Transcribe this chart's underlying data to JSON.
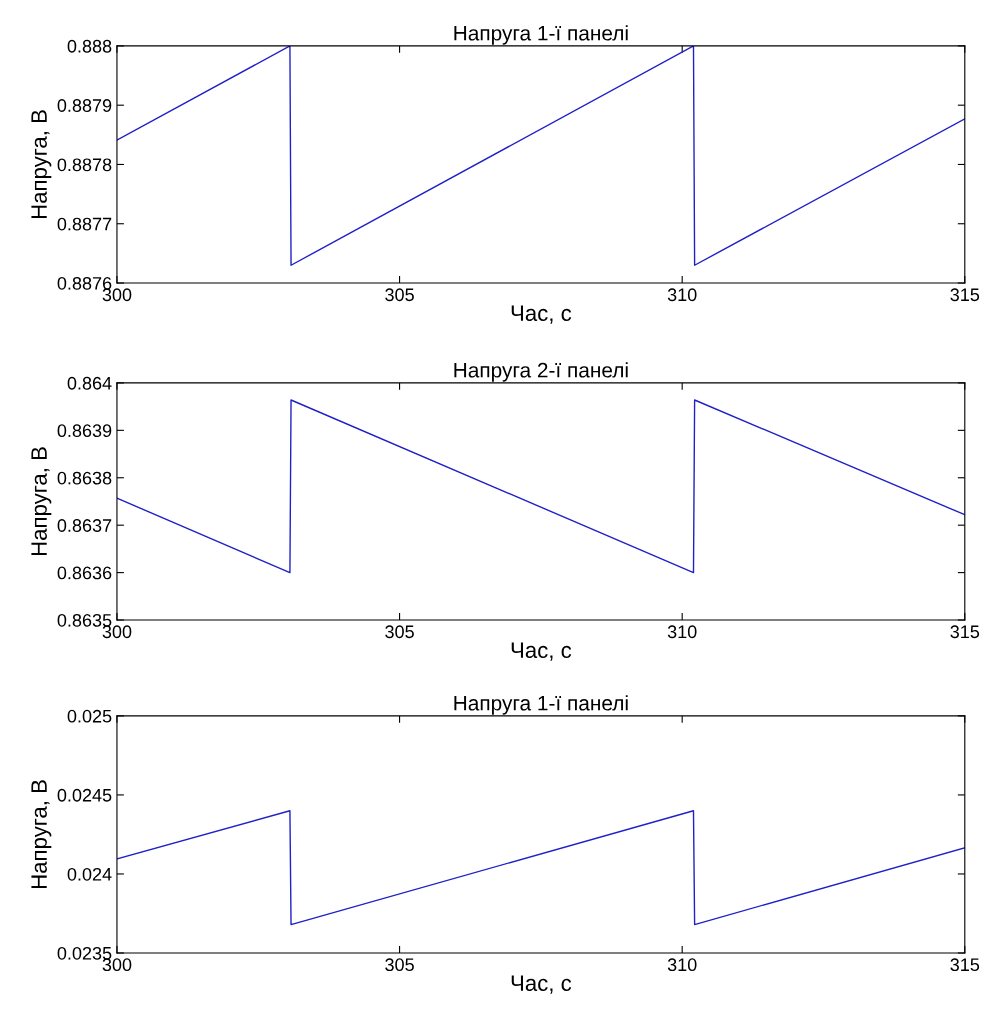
{
  "chart_data": [
    {
      "type": "line",
      "title": "Напруга 1-ї панелі",
      "xlabel": "Час, с",
      "ylabel": "Напруга, В",
      "xlim": [
        300,
        315
      ],
      "xticks": [
        300,
        305,
        310,
        315
      ],
      "ylim": [
        0.8876,
        0.888
      ],
      "yticks": [
        0.8876,
        0.8877,
        0.8878,
        0.8879,
        0.888
      ],
      "grid": false,
      "legend": false,
      "series": [
        {
          "color": "#2020c8",
          "x": [
            300,
            303.06,
            303.08,
            310.2,
            310.22,
            315
          ],
          "values": [
            0.887841,
            0.888,
            0.88763,
            0.888,
            0.88763,
            0.887877
          ]
        }
      ]
    },
    {
      "type": "line",
      "title": "Напруга 2-ї панелі",
      "xlabel": "Час, с",
      "ylabel": "Напруга, В",
      "xlim": [
        300,
        315
      ],
      "xticks": [
        300,
        305,
        310,
        315
      ],
      "ylim": [
        0.8635,
        0.864
      ],
      "yticks": [
        0.8635,
        0.8636,
        0.8637,
        0.8638,
        0.8639,
        0.864
      ],
      "grid": false,
      "legend": false,
      "series": [
        {
          "color": "#2020c8",
          "x": [
            300,
            303.06,
            303.08,
            310.2,
            310.22,
            315
          ],
          "values": [
            0.863757,
            0.8636,
            0.863964,
            0.8636,
            0.863964,
            0.863722
          ]
        }
      ]
    },
    {
      "type": "line",
      "title": "Напруга 1-ї панелі",
      "xlabel": "Час, с",
      "ylabel": "Напруга, В",
      "xlim": [
        300,
        315
      ],
      "xticks": [
        300,
        305,
        310,
        315
      ],
      "ylim": [
        0.0235,
        0.025
      ],
      "yticks": [
        0.0235,
        0.024,
        0.0245,
        0.025
      ],
      "grid": false,
      "legend": false,
      "series": [
        {
          "color": "#2020c8",
          "x": [
            300,
            303.06,
            303.08,
            310.2,
            310.22,
            315
          ],
          "values": [
            0.024095,
            0.0244,
            0.02368,
            0.0244,
            0.02368,
            0.024165
          ]
        }
      ]
    }
  ]
}
